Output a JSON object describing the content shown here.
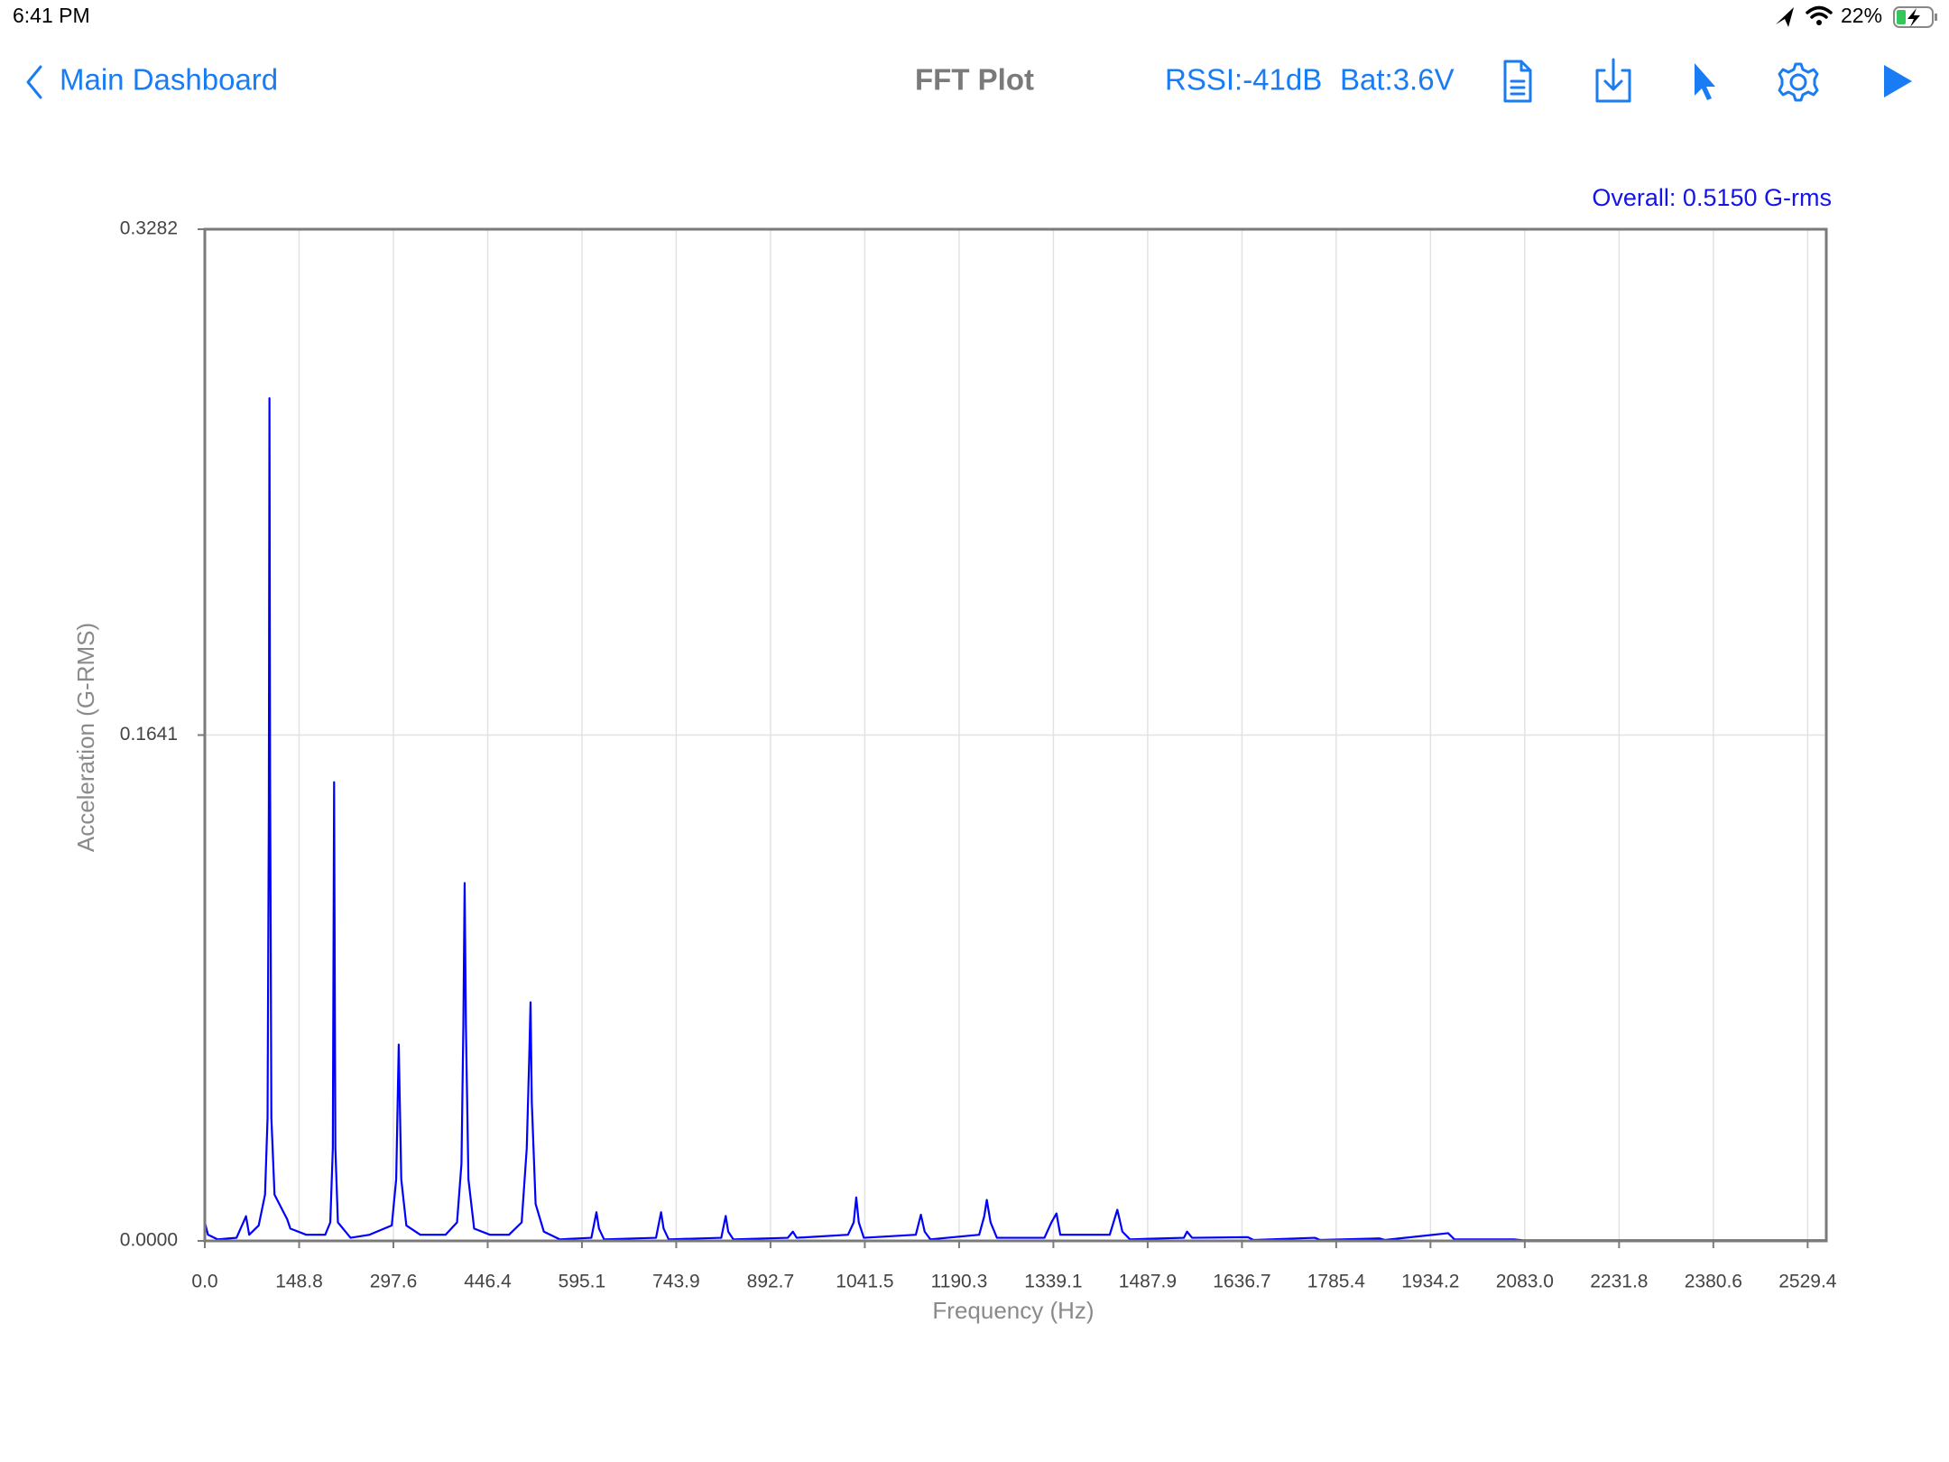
{
  "status_bar": {
    "time": "6:41 PM",
    "battery": "22%"
  },
  "nav": {
    "back": "Main Dashboard",
    "title": "FFT Plot",
    "rssi": "RSSI:-41dB",
    "battery_voltage": "Bat:3.6V"
  },
  "chart_data": {
    "type": "line",
    "overall": "Overall: 0.5150 G-rms",
    "x_label": "Frequency (Hz)",
    "y_label": "Acceleration (G-RMS)",
    "x": [
      0,
      5,
      20,
      50,
      65,
      70,
      85,
      95,
      99,
      101,
      102,
      103,
      105,
      110,
      130,
      135,
      160,
      190,
      198,
      202,
      204,
      206,
      210,
      230,
      260,
      295,
      302,
      306,
      310,
      318,
      340,
      380,
      398,
      405,
      408,
      410,
      412,
      416,
      425,
      450,
      480,
      500,
      508,
      512,
      514,
      516,
      522,
      535,
      560,
      610,
      618,
      622,
      630,
      712,
      720,
      724,
      732,
      815,
      822,
      826,
      834,
      920,
      928,
      934,
      1015,
      1024,
      1028,
      1032,
      1040,
      1122,
      1130,
      1136,
      1145,
      1222,
      1230,
      1234,
      1240,
      1250,
      1325,
      1336,
      1344,
      1350,
      1428,
      1440,
      1448,
      1460,
      1545,
      1550,
      1558,
      1646,
      1655,
      1752,
      1760,
      1854,
      1862,
      1962,
      1972,
      2066,
      2080,
      2300,
      2558
    ],
    "series": [
      {
        "color": "#0000ff",
        "values": [
          0.006,
          0.002,
          0.0005,
          0.001,
          0.008,
          0.002,
          0.005,
          0.015,
          0.04,
          0.14,
          0.2734,
          0.15,
          0.04,
          0.015,
          0.007,
          0.004,
          0.002,
          0.002,
          0.006,
          0.03,
          0.1488,
          0.03,
          0.006,
          0.001,
          0.002,
          0.005,
          0.02,
          0.0637,
          0.02,
          0.005,
          0.002,
          0.002,
          0.006,
          0.025,
          0.07,
          0.1161,
          0.07,
          0.02,
          0.004,
          0.002,
          0.002,
          0.006,
          0.03,
          0.06,
          0.0774,
          0.045,
          0.012,
          0.003,
          0.0005,
          0.001,
          0.0093,
          0.004,
          0.0005,
          0.001,
          0.0093,
          0.004,
          0.0005,
          0.001,
          0.0081,
          0.003,
          0.0005,
          0.001,
          0.003,
          0.001,
          0.002,
          0.006,
          0.0141,
          0.006,
          0.001,
          0.002,
          0.0085,
          0.003,
          0.0005,
          0.002,
          0.008,
          0.0133,
          0.006,
          0.001,
          0.001,
          0.006,
          0.0089,
          0.002,
          0.002,
          0.0101,
          0.003,
          0.0005,
          0.001,
          0.003,
          0.001,
          0.0012,
          0.0003,
          0.001,
          0.0003,
          0.0008,
          0.0003,
          0.0025,
          0.0005,
          0.0005,
          0.0002,
          0.0002,
          0.0002
        ]
      }
    ],
    "xlim": [
      0,
      2558.8
    ],
    "ylim": [
      0,
      0.3282
    ],
    "xticks": [
      {
        "value": 0,
        "label": "0.0"
      },
      148.8,
      297.6,
      446.4,
      595.1,
      743.9,
      892.7,
      1041.5,
      1190.3,
      1339.1,
      1487.9,
      1636.7,
      1785.4,
      1934.2,
      {
        "value": 2083,
        "label": "2083.0"
      },
      2231.8,
      2380.6,
      2529.4
    ],
    "yticks": [
      {
        "value": 0,
        "label": "0.0000"
      },
      0.1641,
      0.3282
    ],
    "grid": true
  }
}
